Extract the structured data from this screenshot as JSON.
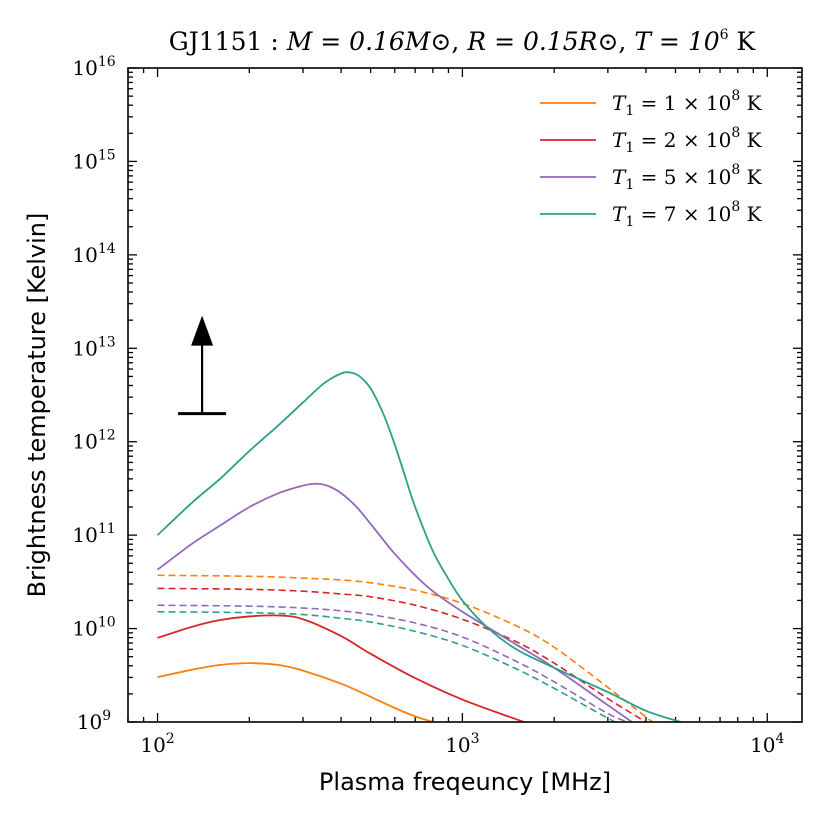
{
  "chart_data": {
    "type": "line",
    "title": {
      "star": "GJ1151",
      "mass": "M = 0.16M⊙",
      "radius": "R = 0.15R⊙",
      "temperature_base": "T = 10",
      "temperature_exp": "6",
      "temperature_unit": "K"
    },
    "xlabel": "Plasma freqeuncy [MHz]",
    "ylabel": "Brightness temperature [Kelvin]",
    "x_scale": "log",
    "y_scale": "log",
    "xlim": [
      80,
      13000
    ],
    "ylim": [
      1000000000,
      10000000000000000
    ],
    "x_ticks": [
      {
        "value": 100,
        "base": "10",
        "exp": "2"
      },
      {
        "value": 1000,
        "base": "10",
        "exp": "3"
      },
      {
        "value": 10000,
        "base": "10",
        "exp": "4"
      }
    ],
    "y_ticks": [
      {
        "value": 1000000000,
        "base": "10",
        "exp": "9"
      },
      {
        "value": 10000000000,
        "base": "10",
        "exp": "10"
      },
      {
        "value": 100000000000,
        "base": "10",
        "exp": "11"
      },
      {
        "value": 1000000000000,
        "base": "10",
        "exp": "12"
      },
      {
        "value": 10000000000000,
        "base": "10",
        "exp": "13"
      },
      {
        "value": 100000000000000,
        "base": "10",
        "exp": "14"
      },
      {
        "value": 1000000000000000,
        "base": "10",
        "exp": "15"
      },
      {
        "value": 10000000000000000,
        "base": "10",
        "exp": "16"
      }
    ],
    "legend_position": "top-right",
    "series": [
      {
        "name": "T1 = 1 × 10^8 K",
        "label_prefix": "T",
        "label_sub": "1",
        "label_mid": " = 1 × 10",
        "label_exp": "8",
        "label_unit": " K",
        "color": "#ff7f0e",
        "solid": {
          "x": [
            100,
            130,
            160,
            200,
            250,
            300,
            400,
            500,
            600,
            700,
            800
          ],
          "log_y": [
            9.48,
            9.56,
            9.61,
            9.63,
            9.61,
            9.55,
            9.41,
            9.27,
            9.15,
            9.06,
            9.0
          ]
        },
        "dashed": {
          "x": [
            100,
            200,
            300,
            400,
            500,
            700,
            1000,
            1500,
            2000,
            3000,
            4200
          ],
          "log_y": [
            10.57,
            10.56,
            10.54,
            10.52,
            10.49,
            10.41,
            10.27,
            10.03,
            9.8,
            9.37,
            9.0
          ]
        }
      },
      {
        "name": "T1 = 2 × 10^8 K",
        "label_prefix": "T",
        "label_sub": "1",
        "label_mid": " = 2 × 10",
        "label_exp": "8",
        "label_unit": " K",
        "color": "#d62728",
        "solid": {
          "x": [
            100,
            130,
            160,
            200,
            250,
            300,
            400,
            500,
            700,
            1000,
            1500,
            1600
          ],
          "log_y": [
            9.9,
            10.02,
            10.09,
            10.13,
            10.14,
            10.1,
            9.92,
            9.73,
            9.47,
            9.24,
            9.03,
            9.0
          ]
        },
        "dashed": {
          "x": [
            100,
            200,
            300,
            400,
            500,
            700,
            1000,
            1500,
            2000,
            3000,
            4000
          ],
          "log_y": [
            10.43,
            10.42,
            10.4,
            10.37,
            10.34,
            10.25,
            10.1,
            9.86,
            9.63,
            9.25,
            9.0
          ]
        }
      },
      {
        "name": "T1 = 5 × 10^8 K",
        "label_prefix": "T",
        "label_sub": "1",
        "label_mid": " = 5 × 10",
        "label_exp": "8",
        "label_unit": " K",
        "color": "#9467bd",
        "solid": {
          "x": [
            100,
            130,
            160,
            200,
            250,
            300,
            330,
            360,
            400,
            450,
            500,
            550,
            600,
            700,
            800,
            1000,
            1500,
            2000,
            3000,
            3600
          ],
          "log_y": [
            10.63,
            10.91,
            11.1,
            11.3,
            11.45,
            11.53,
            11.55,
            11.53,
            11.45,
            11.3,
            11.12,
            10.95,
            10.8,
            10.57,
            10.4,
            10.18,
            9.83,
            9.58,
            9.18,
            9.0
          ]
        },
        "dashed": {
          "x": [
            100,
            200,
            300,
            400,
            500,
            700,
            1000,
            1500,
            2000,
            3000,
            3500
          ],
          "log_y": [
            10.25,
            10.24,
            10.22,
            10.19,
            10.15,
            10.06,
            9.91,
            9.65,
            9.43,
            9.09,
            9.0
          ]
        }
      },
      {
        "name": "T1 = 7 × 10^8 K",
        "label_prefix": "T",
        "label_sub": "1",
        "label_mid": " = 7 × 10",
        "label_exp": "8",
        "label_unit": " K",
        "color": "#2ca089",
        "solid": {
          "x": [
            100,
            130,
            160,
            200,
            250,
            300,
            350,
            400,
            430,
            460,
            500,
            550,
            600,
            650,
            700,
            800,
            900,
            1000,
            1200,
            1500,
            2000,
            3000,
            4000,
            5200
          ],
          "log_y": [
            11.0,
            11.35,
            11.6,
            11.9,
            12.18,
            12.42,
            12.62,
            12.73,
            12.74,
            12.7,
            12.57,
            12.3,
            11.97,
            11.62,
            11.3,
            10.83,
            10.53,
            10.3,
            10.02,
            9.78,
            9.58,
            9.32,
            9.12,
            9.0
          ]
        },
        "dashed": {
          "x": [
            100,
            200,
            300,
            400,
            500,
            700,
            1000,
            1500,
            2000,
            3000,
            3200
          ],
          "log_y": [
            10.18,
            10.17,
            10.15,
            10.11,
            10.07,
            9.97,
            9.82,
            9.57,
            9.36,
            9.04,
            9.0
          ]
        }
      }
    ],
    "annotations": [
      {
        "type": "lower-limit-arrow",
        "x": 140,
        "log_y": 12.3,
        "log_y_tip": 13.35
      }
    ]
  }
}
